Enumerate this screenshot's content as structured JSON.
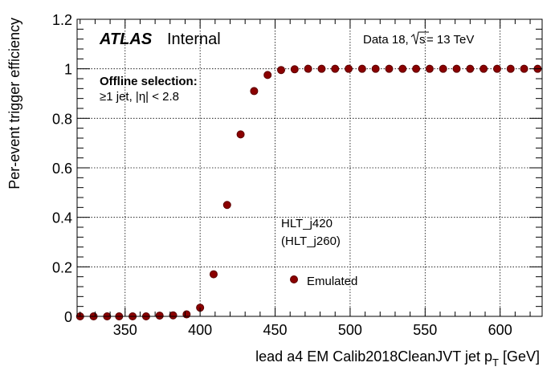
{
  "chart_data": {
    "type": "scatter",
    "xlabel_main": "lead a4 EM Calib2018CleanJVT jet p",
    "xlabel_sub": "T",
    "xlabel_unit": " [GeV]",
    "ylabel": "Per-event trigger efficiency",
    "xlim": [
      318,
      628
    ],
    "ylim": [
      0,
      1.2
    ],
    "x_ticks": [
      350,
      400,
      450,
      500,
      550,
      600
    ],
    "y_ticks": [
      0,
      0.2,
      0.4,
      0.6,
      0.8,
      1,
      1.2
    ],
    "y_tick_labels": [
      "0",
      "0.2",
      "0.4",
      "0.6",
      "0.8",
      "1",
      "1.2"
    ],
    "grid": true,
    "series": [
      {
        "name": "Emulated",
        "color": "#8b0000",
        "x": [
          320,
          329,
          338,
          346,
          355,
          364,
          373,
          382,
          391,
          400,
          409,
          418,
          427,
          436,
          445,
          454,
          463,
          472,
          481,
          490,
          499,
          508,
          517,
          526,
          535,
          544,
          553,
          562,
          571,
          580,
          589,
          598,
          607,
          616,
          625
        ],
        "y": [
          0.0,
          0.0,
          0.0,
          0.0,
          0.0,
          0.0,
          0.003,
          0.004,
          0.008,
          0.035,
          0.17,
          0.45,
          0.735,
          0.91,
          0.975,
          0.995,
          0.998,
          1.0,
          1.0,
          1.0,
          1.0,
          1.0,
          1.0,
          1.0,
          1.0,
          1.0,
          1.0,
          1.0,
          1.0,
          1.0,
          1.0,
          1.0,
          1.0,
          1.0,
          1.0
        ]
      }
    ]
  },
  "labels": {
    "atlas": "ATLAS",
    "internal": "Internal",
    "data_pre": "Data 18,",
    "sqrt_s": "s",
    "energy": " = 13 TeV",
    "offline_title": "Offline selection:",
    "offline_cut": "≥1 jet, |η| < 2.8",
    "trigger": "HLT_j420",
    "trigger_ref": "(HLT_j260)",
    "legend_entry": "Emulated"
  }
}
